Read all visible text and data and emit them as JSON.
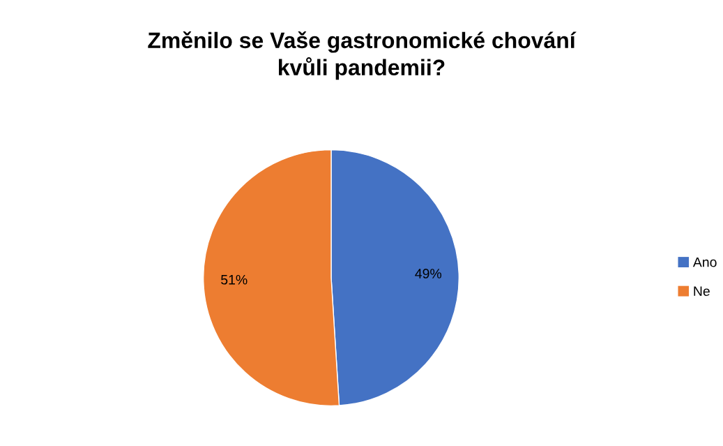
{
  "chart_data": {
    "type": "pie",
    "title": "Změnilo se Vaše gastronomické chování\nkvůli pandemii?",
    "categories": [
      "Ano",
      "Ne"
    ],
    "values": [
      49,
      51
    ],
    "colors": [
      "#4472c4",
      "#ed7d31"
    ],
    "value_labels": [
      "49%",
      "51%"
    ],
    "legend": "right"
  }
}
